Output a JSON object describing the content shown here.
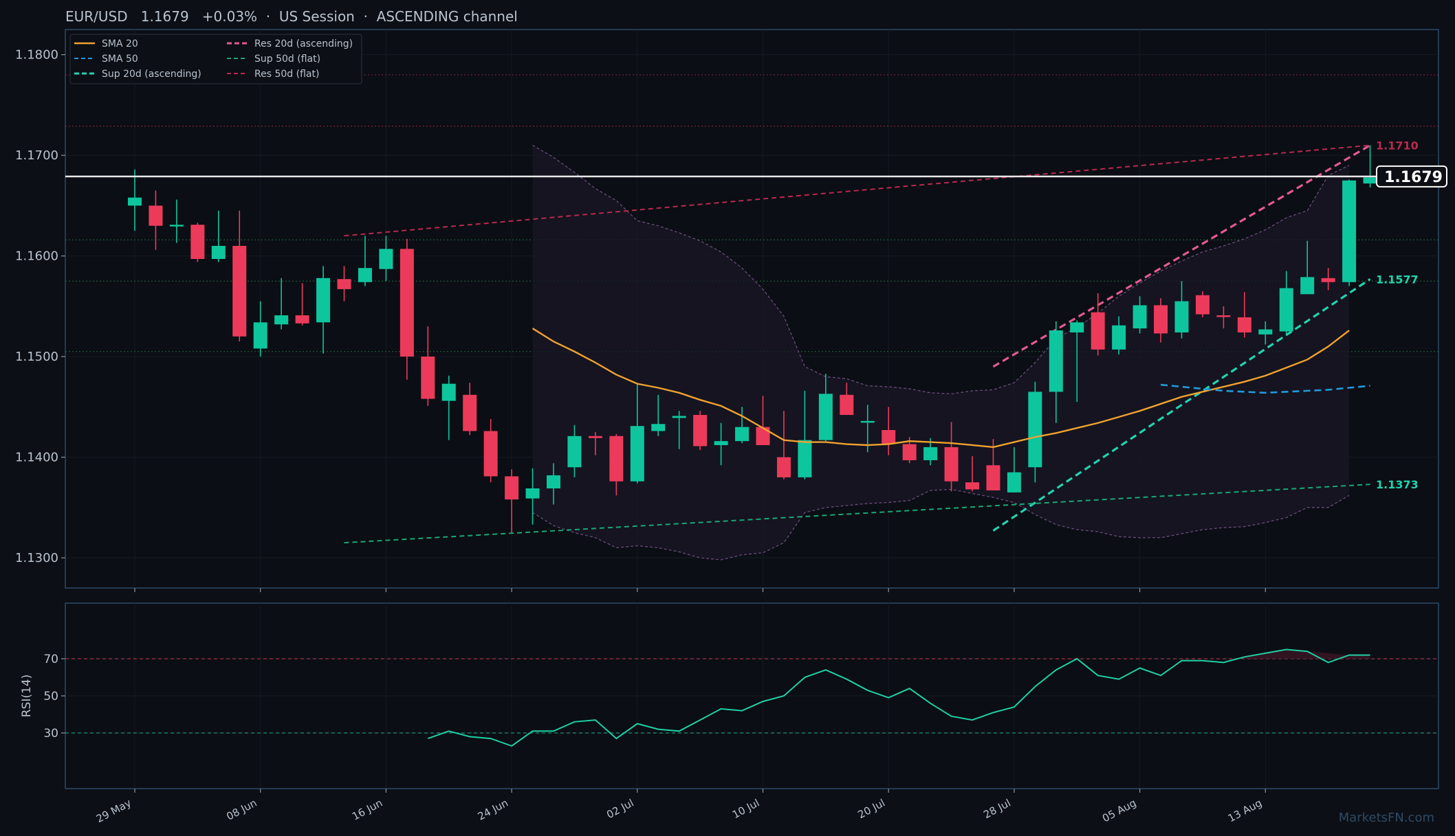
{
  "header": {
    "text": "EUR/USD   1.1679   +0.03%  ·  US Session  ·  ASCENDING channel"
  },
  "watermark": "MarketsFN.com",
  "colors": {
    "background": "#0c0f15",
    "bull": "#0ec69e",
    "bear": "#ec3b5a",
    "sma20": "#f0a22f",
    "sma50": "#1f9bdc",
    "sup20": "#22d3ae",
    "res20": "#e35a92",
    "sup50": "#1aa877",
    "res50": "#b82a4f",
    "band": "#6d4a7f",
    "price_line": "#e8e8e8",
    "axis": "#2c4a6a",
    "text": "#b9c3cf"
  },
  "chart_data": [
    {
      "type": "candlestick",
      "title": "EUR/USD",
      "ylim": [
        1.127,
        1.1825
      ],
      "yticks": [
        "1.1300",
        "1.1400",
        "1.1500",
        "1.1600",
        "1.1700",
        "1.1800"
      ],
      "xticks": [
        {
          "label": "29 May",
          "i": 0
        },
        {
          "label": "08 Jun",
          "i": 6
        },
        {
          "label": "16 Jun",
          "i": 12
        },
        {
          "label": "24 Jun",
          "i": 18
        },
        {
          "label": "02 Jul",
          "i": 24
        },
        {
          "label": "10 Jul",
          "i": 30
        },
        {
          "label": "20 Jul",
          "i": 36
        },
        {
          "label": "28 Jul",
          "i": 42
        },
        {
          "label": "05 Aug",
          "i": 48
        },
        {
          "label": "13 Aug",
          "i": 54
        }
      ],
      "candles": [
        [
          1.165,
          1.1686,
          1.1625,
          1.1658
        ],
        [
          1.165,
          1.1665,
          1.1606,
          1.163
        ],
        [
          1.163,
          1.1656,
          1.1613,
          1.1631
        ],
        [
          1.1631,
          1.1633,
          1.1594,
          1.1597
        ],
        [
          1.1597,
          1.1645,
          1.1594,
          1.161
        ],
        [
          1.161,
          1.1645,
          1.1515,
          1.152
        ],
        [
          1.1508,
          1.1555,
          1.15,
          1.1534
        ],
        [
          1.1532,
          1.1578,
          1.1527,
          1.1541
        ],
        [
          1.1541,
          1.1573,
          1.1531,
          1.1533
        ],
        [
          1.1534,
          1.159,
          1.1503,
          1.1578
        ],
        [
          1.1577,
          1.159,
          1.1555,
          1.1567
        ],
        [
          1.1574,
          1.162,
          1.157,
          1.1588
        ],
        [
          1.1587,
          1.162,
          1.1575,
          1.1607
        ],
        [
          1.1607,
          1.1617,
          1.1477,
          1.15
        ],
        [
          1.15,
          1.153,
          1.1451,
          1.1458
        ],
        [
          1.1456,
          1.1481,
          1.1417,
          1.1473
        ],
        [
          1.1462,
          1.1474,
          1.1422,
          1.1426
        ],
        [
          1.1426,
          1.1438,
          1.1375,
          1.1381
        ],
        [
          1.1381,
          1.1388,
          1.1325,
          1.1358
        ],
        [
          1.1359,
          1.1389,
          1.1333,
          1.1369
        ],
        [
          1.1369,
          1.1394,
          1.1353,
          1.1382
        ],
        [
          1.139,
          1.1432,
          1.138,
          1.1421
        ],
        [
          1.1421,
          1.1425,
          1.1402,
          1.1419
        ],
        [
          1.1421,
          1.1423,
          1.1362,
          1.1376
        ],
        [
          1.1376,
          1.1473,
          1.1374,
          1.1431
        ],
        [
          1.1426,
          1.1462,
          1.1421,
          1.1433
        ],
        [
          1.1439,
          1.1446,
          1.1408,
          1.1441
        ],
        [
          1.1442,
          1.1446,
          1.1407,
          1.1411
        ],
        [
          1.1412,
          1.1434,
          1.1392,
          1.1416
        ],
        [
          1.1416,
          1.145,
          1.1414,
          1.143
        ],
        [
          1.143,
          1.1461,
          1.1412,
          1.1412
        ],
        [
          1.14,
          1.1446,
          1.1378,
          1.138
        ],
        [
          1.138,
          1.1466,
          1.1378,
          1.1417
        ],
        [
          1.1417,
          1.1483,
          1.1416,
          1.1463
        ],
        [
          1.1462,
          1.1474,
          1.1442,
          1.1442
        ],
        [
          1.1435,
          1.1452,
          1.1405,
          1.1436
        ],
        [
          1.1427,
          1.145,
          1.1402,
          1.1413
        ],
        [
          1.1413,
          1.142,
          1.1394,
          1.1397
        ],
        [
          1.1397,
          1.1419,
          1.1392,
          1.141
        ],
        [
          1.141,
          1.1435,
          1.1366,
          1.1376
        ],
        [
          1.1375,
          1.1401,
          1.1366,
          1.1368
        ],
        [
          1.1392,
          1.1418,
          1.1367,
          1.1367
        ],
        [
          1.1365,
          1.141,
          1.1365,
          1.1385
        ],
        [
          1.139,
          1.1475,
          1.1375,
          1.1465
        ],
        [
          1.1465,
          1.1535,
          1.1434,
          1.1526
        ],
        [
          1.1524,
          1.1536,
          1.1455,
          1.1534
        ],
        [
          1.1544,
          1.1563,
          1.1501,
          1.1507
        ],
        [
          1.1507,
          1.154,
          1.1502,
          1.1531
        ],
        [
          1.1528,
          1.156,
          1.1523,
          1.1551
        ],
        [
          1.1551,
          1.1558,
          1.1514,
          1.1523
        ],
        [
          1.1524,
          1.1575,
          1.1518,
          1.1555
        ],
        [
          1.1561,
          1.1565,
          1.1539,
          1.1542
        ],
        [
          1.1541,
          1.155,
          1.1528,
          1.154
        ],
        [
          1.1539,
          1.1564,
          1.1519,
          1.1524
        ],
        [
          1.1522,
          1.1535,
          1.1512,
          1.1527
        ],
        [
          1.1525,
          1.1585,
          1.1522,
          1.1568
        ],
        [
          1.1562,
          1.1615,
          1.1562,
          1.1579
        ],
        [
          1.1578,
          1.1588,
          1.1566,
          1.1574
        ],
        [
          1.1574,
          1.1676,
          1.157,
          1.1675
        ],
        [
          1.1672,
          1.171,
          1.1668,
          1.1678
        ]
      ],
      "sma20": {
        "name": "SMA 20",
        "start": 19,
        "values": [
          1.1528,
          1.1515,
          1.1505,
          1.1494,
          1.1482,
          1.1473,
          1.1469,
          1.1464,
          1.1457,
          1.1451,
          1.1441,
          1.1429,
          1.1417,
          1.1415,
          1.1415,
          1.1413,
          1.1412,
          1.1413,
          1.1416,
          1.1415,
          1.1414,
          1.1412,
          1.141,
          1.1415,
          1.142,
          1.1424,
          1.1429,
          1.1434,
          1.144,
          1.1446,
          1.1453,
          1.146,
          1.1465,
          1.147,
          1.1475,
          1.1481,
          1.1489,
          1.1497,
          1.151,
          1.1526
        ]
      },
      "sma50": {
        "name": "SMA 50",
        "start": 49,
        "values": [
          1.1472,
          1.147,
          1.1468,
          1.1466,
          1.1465,
          1.1464,
          1.1465,
          1.1466,
          1.1467,
          1.1469,
          1.1471
        ]
      },
      "bollinger": {
        "start": 19,
        "upper": [
          1.171,
          1.1698,
          1.1683,
          1.1667,
          1.1655,
          1.1635,
          1.163,
          1.1623,
          1.1615,
          1.1604,
          1.1588,
          1.1567,
          1.154,
          1.149,
          1.148,
          1.1478,
          1.1471,
          1.147,
          1.1468,
          1.1464,
          1.1463,
          1.1466,
          1.1467,
          1.1474,
          1.1494,
          1.1518,
          1.1529,
          1.1543,
          1.156,
          1.1573,
          1.1585,
          1.1595,
          1.1604,
          1.161,
          1.1617,
          1.1626,
          1.1638,
          1.1645,
          1.168,
          1.169
        ],
        "lower": [
          1.1345,
          1.1332,
          1.1325,
          1.132,
          1.131,
          1.1312,
          1.131,
          1.1306,
          1.13,
          1.1298,
          1.1303,
          1.1305,
          1.1315,
          1.1345,
          1.135,
          1.1352,
          1.1354,
          1.1355,
          1.1357,
          1.1367,
          1.1368,
          1.1364,
          1.136,
          1.1355,
          1.1343,
          1.1333,
          1.1328,
          1.1326,
          1.1321,
          1.132,
          1.132,
          1.1324,
          1.1328,
          1.133,
          1.1331,
          1.1335,
          1.134,
          1.135,
          1.135,
          1.1362
        ]
      },
      "channels": [
        {
          "name": "Res 20d (ascending)",
          "from": [
            41,
            1.149
          ],
          "to": [
            59,
            1.171
          ],
          "style": "dash-bold"
        },
        {
          "name": "Sup 20d (ascending)",
          "from": [
            41,
            1.1327
          ],
          "to": [
            59,
            1.1577
          ],
          "style": "dash-bold"
        },
        {
          "name": "Sup 50d (flat)",
          "from": [
            10,
            1.1315
          ],
          "to": [
            59,
            1.1373
          ],
          "style": "dash"
        },
        {
          "name": "Res 50d (flat)",
          "from": [
            10,
            1.162
          ],
          "to": [
            59,
            1.171
          ],
          "style": "dash"
        }
      ],
      "hlines": [
        1.178,
        1.1729,
        1.1616,
        1.1575,
        1.1505
      ],
      "current_price": {
        "value": 1.1679,
        "label": "1.1679"
      },
      "end_labels": [
        {
          "value": 1.171,
          "label": "1.1710",
          "color": "res50"
        },
        {
          "value": 1.1577,
          "label": "1.1577",
          "color": "sup20"
        },
        {
          "value": 1.1373,
          "label": "1.1373",
          "color": "sup20"
        }
      ],
      "legend": {
        "placement": "top-left",
        "entries": [
          {
            "label": "SMA 20",
            "color": "sma20",
            "style": "solid"
          },
          {
            "label": "Res 20d (ascending)",
            "color": "res20",
            "style": "dash-bold"
          },
          {
            "label": "SMA 50",
            "color": "sma50",
            "style": "dash"
          },
          {
            "label": "Sup 50d (flat)",
            "color": "sup50",
            "style": "dash"
          },
          {
            "label": "Sup 20d (ascending)",
            "color": "sup20",
            "style": "dash-bold"
          },
          {
            "label": "Res 50d (flat)",
            "color": "res50",
            "style": "dash"
          }
        ]
      }
    },
    {
      "type": "line",
      "ylabel": "RSI(14)",
      "ylim": [
        0,
        100
      ],
      "yticks": [
        "30",
        "50",
        "70"
      ],
      "levels": [
        30,
        70
      ],
      "series": [
        {
          "start": 14,
          "values": [
            27,
            31,
            28,
            27,
            23,
            31,
            31,
            36,
            37,
            27,
            35,
            32,
            31,
            37,
            43,
            42,
            47,
            50,
            60,
            64,
            59,
            53,
            49,
            54,
            46,
            39,
            37,
            41,
            44,
            55,
            64,
            70,
            61,
            59,
            65,
            61,
            69,
            69,
            68,
            71,
            73,
            75,
            74,
            68,
            72,
            72
          ]
        }
      ]
    }
  ]
}
